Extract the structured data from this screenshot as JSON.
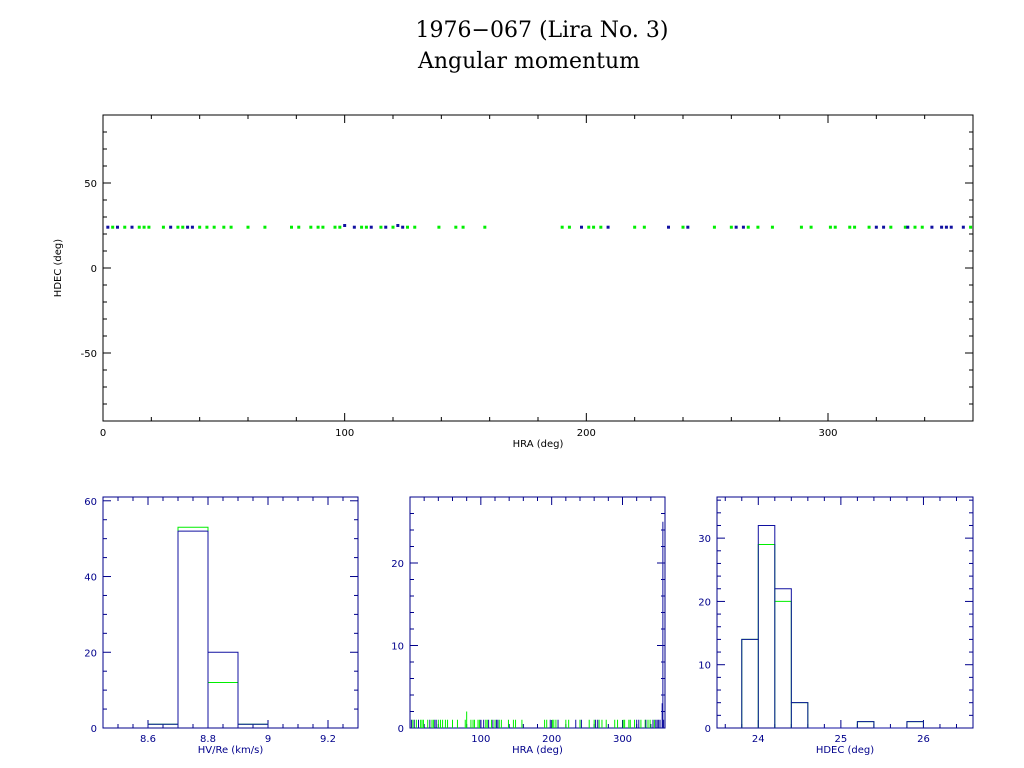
{
  "title_line1": "1976−067 (Lira No. 3)",
  "title_line2": "Angular momentum",
  "colors": {
    "primary": "#1010a0",
    "secondary": "#00ee00",
    "frame_top": "#000000",
    "frame_bottom": "#00008b"
  },
  "chart_data": [
    {
      "type": "scatter",
      "xlabel": "HRA (deg)",
      "ylabel": "HDEC (deg)",
      "xlim": [
        0,
        360
      ],
      "ylim": [
        -90,
        90
      ],
      "x_ticks": [
        0,
        100,
        200,
        300
      ],
      "y_ticks": [
        50,
        0,
        -50
      ],
      "series": [
        {
          "color": "#1010a0",
          "points": [
            [
              2,
              24
            ],
            [
              6,
              24
            ],
            [
              12,
              24
            ],
            [
              28,
              24
            ],
            [
              35,
              24
            ],
            [
              37,
              24
            ],
            [
              100,
              25
            ],
            [
              104,
              24
            ],
            [
              111,
              24
            ],
            [
              117,
              24
            ],
            [
              122,
              25
            ],
            [
              124,
              24
            ],
            [
              198,
              24
            ],
            [
              209,
              24
            ],
            [
              234,
              24
            ],
            [
              242,
              24
            ],
            [
              262,
              24
            ],
            [
              265,
              24
            ],
            [
              320,
              24
            ],
            [
              323,
              24
            ],
            [
              333,
              24
            ],
            [
              343,
              24
            ],
            [
              347,
              24
            ],
            [
              349,
              24
            ],
            [
              351,
              24
            ],
            [
              356,
              24
            ]
          ]
        },
        {
          "color": "#00ee00",
          "points": [
            [
              4,
              24
            ],
            [
              9,
              24
            ],
            [
              15,
              24
            ],
            [
              17,
              24
            ],
            [
              19,
              24
            ],
            [
              25,
              24
            ],
            [
              31,
              24
            ],
            [
              33,
              24
            ],
            [
              40,
              24
            ],
            [
              43,
              24
            ],
            [
              46,
              24
            ],
            [
              50,
              24
            ],
            [
              53,
              24
            ],
            [
              60,
              24
            ],
            [
              67,
              24
            ],
            [
              78,
              24
            ],
            [
              81,
              24
            ],
            [
              86,
              24
            ],
            [
              89,
              24
            ],
            [
              91,
              24
            ],
            [
              96,
              24
            ],
            [
              98,
              24
            ],
            [
              107,
              24
            ],
            [
              109,
              24
            ],
            [
              115,
              24
            ],
            [
              120,
              24
            ],
            [
              126,
              24
            ],
            [
              129,
              24
            ],
            [
              139,
              24
            ],
            [
              146,
              24
            ],
            [
              149,
              24
            ],
            [
              158,
              24
            ],
            [
              190,
              24
            ],
            [
              193,
              24
            ],
            [
              201,
              24
            ],
            [
              203,
              24
            ],
            [
              206,
              24
            ],
            [
              220,
              24
            ],
            [
              224,
              24
            ],
            [
              240,
              24
            ],
            [
              253,
              24
            ],
            [
              260,
              24
            ],
            [
              267,
              24
            ],
            [
              271,
              24
            ],
            [
              277,
              24
            ],
            [
              289,
              24
            ],
            [
              293,
              24
            ],
            [
              301,
              24
            ],
            [
              303,
              24
            ],
            [
              309,
              24
            ],
            [
              311,
              24
            ],
            [
              317,
              24
            ],
            [
              326,
              24
            ],
            [
              332,
              24
            ],
            [
              336,
              24
            ],
            [
              339,
              24
            ],
            [
              359,
              24
            ]
          ]
        }
      ]
    },
    {
      "type": "bar",
      "xlabel": "HV/Re (km/s)",
      "xlim": [
        8.45,
        9.3
      ],
      "ylim": [
        0,
        61
      ],
      "x_ticks": [
        8.6,
        8.8,
        9,
        9.2
      ],
      "x_tick_labels": [
        "8.6",
        "8.8",
        "9",
        "9.2"
      ],
      "y_ticks": [
        0,
        20,
        40,
        60
      ],
      "bin_edges": [
        8.6,
        8.7,
        8.8,
        8.9,
        9.0
      ],
      "series": [
        {
          "color": "#1010a0",
          "values": [
            1,
            52,
            20,
            1
          ]
        },
        {
          "color": "#00ee00",
          "values": [
            1,
            53,
            12,
            1
          ]
        }
      ]
    },
    {
      "type": "bar",
      "xlabel": "HRA (deg)",
      "xlim": [
        0,
        360
      ],
      "ylim": [
        0,
        28
      ],
      "x_ticks": [
        100,
        200,
        300
      ],
      "y_ticks": [
        0,
        10,
        20
      ],
      "series": [
        {
          "color": "#1010a0",
          "counts": [
            [
              357,
              25
            ],
            [
              356,
              3
            ],
            [
              358,
              1
            ],
            [
              2,
              1
            ],
            [
              6,
              1
            ],
            [
              12,
              1
            ],
            [
              28,
              1
            ],
            [
              35,
              1
            ],
            [
              37,
              1
            ],
            [
              100,
              1
            ],
            [
              104,
              1
            ],
            [
              111,
              1
            ],
            [
              117,
              1
            ],
            [
              122,
              1
            ],
            [
              124,
              1
            ],
            [
              198,
              1
            ],
            [
              209,
              1
            ],
            [
              234,
              1
            ],
            [
              242,
              1
            ],
            [
              262,
              1
            ],
            [
              265,
              1
            ],
            [
              320,
              1
            ],
            [
              323,
              1
            ],
            [
              333,
              1
            ],
            [
              343,
              1
            ],
            [
              347,
              1
            ],
            [
              349,
              1
            ],
            [
              351,
              1
            ],
            [
              353,
              1
            ]
          ]
        },
        {
          "color": "#00ee00",
          "counts": [
            [
              80,
              2
            ],
            [
              4,
              1
            ],
            [
              9,
              1
            ],
            [
              15,
              1
            ],
            [
              17,
              1
            ],
            [
              19,
              1
            ],
            [
              25,
              1
            ],
            [
              31,
              1
            ],
            [
              33,
              1
            ],
            [
              40,
              1
            ],
            [
              43,
              1
            ],
            [
              46,
              1
            ],
            [
              50,
              1
            ],
            [
              53,
              1
            ],
            [
              60,
              1
            ],
            [
              67,
              1
            ],
            [
              78,
              1
            ],
            [
              86,
              1
            ],
            [
              89,
              1
            ],
            [
              91,
              1
            ],
            [
              96,
              1
            ],
            [
              98,
              1
            ],
            [
              107,
              1
            ],
            [
              109,
              1
            ],
            [
              115,
              1
            ],
            [
              120,
              1
            ],
            [
              126,
              1
            ],
            [
              129,
              1
            ],
            [
              139,
              1
            ],
            [
              146,
              1
            ],
            [
              149,
              1
            ],
            [
              158,
              1
            ],
            [
              190,
              1
            ],
            [
              193,
              1
            ],
            [
              201,
              1
            ],
            [
              203,
              1
            ],
            [
              206,
              1
            ],
            [
              220,
              1
            ],
            [
              224,
              1
            ],
            [
              240,
              1
            ],
            [
              253,
              1
            ],
            [
              260,
              1
            ],
            [
              267,
              1
            ],
            [
              271,
              1
            ],
            [
              277,
              1
            ],
            [
              289,
              1
            ],
            [
              293,
              1
            ],
            [
              301,
              1
            ],
            [
              303,
              1
            ],
            [
              309,
              1
            ],
            [
              311,
              1
            ],
            [
              317,
              1
            ],
            [
              326,
              1
            ],
            [
              332,
              1
            ],
            [
              336,
              1
            ],
            [
              339,
              1
            ],
            [
              345,
              1
            ]
          ]
        }
      ]
    },
    {
      "type": "bar",
      "xlabel": "HDEC (deg)",
      "xlim": [
        23.5,
        26.6
      ],
      "ylim": [
        0,
        36.5
      ],
      "x_ticks": [
        24,
        25,
        26
      ],
      "y_ticks": [
        0,
        10,
        20,
        30
      ],
      "bin_edges": [
        23.8,
        24.0,
        24.2,
        24.4,
        24.6,
        24.8,
        25.0,
        25.2,
        25.4,
        25.6,
        25.8,
        26.0
      ],
      "series": [
        {
          "color": "#1010a0",
          "values": [
            14,
            32,
            22,
            4,
            0,
            0,
            0,
            1,
            0,
            0,
            1
          ]
        },
        {
          "color": "#00ee00",
          "values": [
            14,
            29,
            20,
            4,
            0,
            0,
            0,
            1,
            0,
            0,
            1
          ]
        }
      ]
    }
  ]
}
